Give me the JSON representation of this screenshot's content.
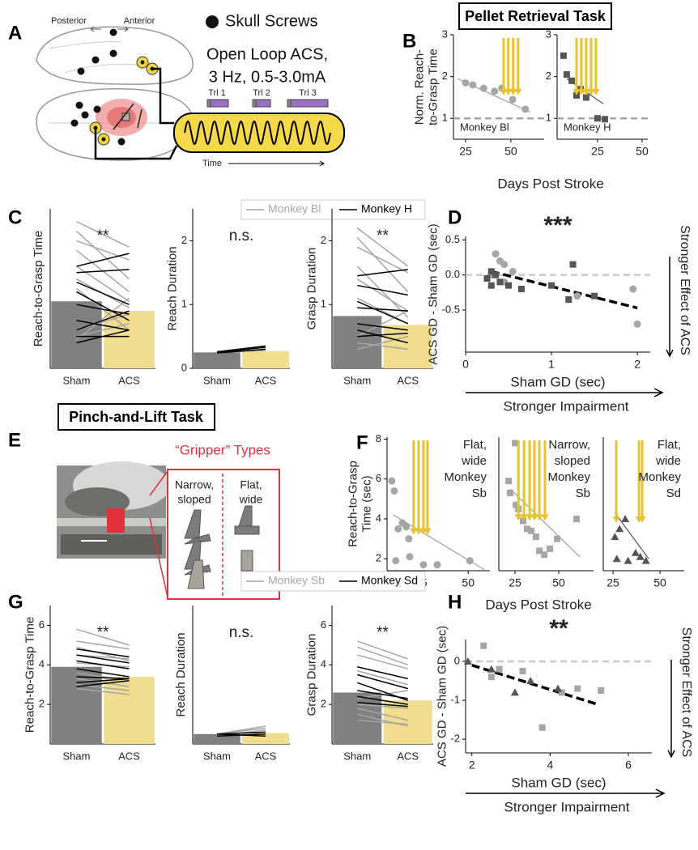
{
  "panel_labels": [
    "A",
    "B",
    "C",
    "D",
    "E",
    "F",
    "G",
    "H"
  ],
  "task_titles": [
    "Pellet Retrieval Task",
    "Pinch-and-Lift Task"
  ],
  "diagram": {
    "posterior": "Posterior",
    "anterior": "Anterior",
    "screws": "Skull Screws",
    "stim": [
      "Open Loop ACS,",
      "3 Hz, 0.5-3.0mA"
    ],
    "trials": [
      "Trl 1",
      "Trl 2",
      "Trl 3"
    ],
    "time": "Time",
    "gripper_title": "“Gripper” Types",
    "gripper_types": [
      [
        "Narrow,",
        "sloped"
      ],
      [
        "Flat,",
        "wide"
      ]
    ]
  },
  "chart_data": [
    {
      "type": "scatter",
      "xlim": [
        18.3,
        68.4
      ],
      "ylim": [
        0.5,
        3
      ],
      "xticks": [
        25,
        50
      ],
      "yticks": [
        1,
        2,
        3
      ],
      "ylabel": [
        "Norm. Reach-",
        "to-Grasp Time"
      ],
      "annotation": "Monkey Bl",
      "reference": 1,
      "reference_color": "#a6a6a6",
      "fit": {
        "x": [
          20.5,
          60.7
        ],
        "values": [
          1.95,
          1.15
        ]
      },
      "fit_color": "#a0a0a0",
      "arrows": [
        46,
        48.6,
        51.3,
        54
      ],
      "arrow_end": 1.55,
      "arrow_color": "#e6c234",
      "series": [
        {
          "marker": "circle",
          "color": "#a6a6a6",
          "x": [
            25,
            29,
            35,
            41,
            45,
            51,
            58
          ],
          "values": [
            1.85,
            1.8,
            1.72,
            1.65,
            1.72,
            1.45,
            1.22
          ]
        }
      ]
    },
    {
      "type": "scatter",
      "xlim": [
        2.3,
        53.2
      ],
      "ylim": [
        0.5,
        3
      ],
      "xticks": [
        25,
        50
      ],
      "yticks": [
        1,
        2,
        3
      ],
      "xlabel": "Days Post Stroke",
      "annotation": "Monkey H",
      "reference": 1,
      "reference_color": "#a6a6a6",
      "fit": {
        "x": [
          7.7,
          28.2
        ],
        "values": [
          1.95,
          1.35
        ]
      },
      "fit_color": "#555555",
      "arrows": [
        13.2,
        15.9,
        18.6,
        21.4,
        24.1
      ],
      "arrow_end": 1.55,
      "arrow_color": "#e6c234",
      "series": [
        {
          "marker": "square",
          "color": "#555555",
          "x": [
            5.9,
            7.7,
            10.5,
            13.2,
            15.5,
            18.6,
            25,
            29.1
          ],
          "values": [
            2.5,
            2.05,
            1.9,
            1.55,
            1.7,
            1.5,
            1.0,
            0.98
          ]
        }
      ]
    },
    {
      "type": "bar",
      "categories": [
        "Sham",
        "ACS"
      ],
      "values": [
        1.05,
        0.9
      ],
      "colors": [
        "#808080",
        "#f0dd8e"
      ],
      "ylim": [
        0,
        2.5
      ],
      "ylabel": "Reach-to-Grasp Time",
      "significance": "**",
      "legend": true,
      "series": [
        {
          "name": "Monkey Bl",
          "color": "#a6a6a6",
          "values": [
            [
              2.3,
              1.9
            ],
            [
              2.15,
              1.4
            ],
            [
              2.0,
              1.7
            ],
            [
              1.85,
              1.2
            ],
            [
              1.6,
              1.05
            ],
            [
              1.4,
              0.95
            ],
            [
              1.25,
              0.6
            ],
            [
              0.6,
              0.85
            ],
            [
              0.5,
              0.7
            ],
            [
              0.45,
              1.1
            ]
          ]
        },
        {
          "name": "Monkey H",
          "color": "#000000",
          "values": [
            [
              1.6,
              1.8
            ],
            [
              1.5,
              1.55
            ],
            [
              1.35,
              1.0
            ],
            [
              1.2,
              0.75
            ],
            [
              1.0,
              0.85
            ],
            [
              0.75,
              0.6
            ],
            [
              0.6,
              0.9
            ],
            [
              0.5,
              0.5
            ],
            [
              0.4,
              0.6
            ]
          ]
        }
      ]
    },
    {
      "type": "bar",
      "categories": [
        "Sham",
        "ACS"
      ],
      "values": [
        0.25,
        0.27
      ],
      "colors": [
        "#808080",
        "#f0dd8e"
      ],
      "ylim": [
        0,
        2.5
      ],
      "yticks": [
        0,
        1,
        2
      ],
      "ylabel": "Reach Duration",
      "significance": "n.s.",
      "series": [
        {
          "color": "#a6a6a6",
          "values": [
            [
              0.25,
              0.28
            ],
            [
              0.24,
              0.3
            ]
          ]
        },
        {
          "color": "#000000",
          "values": [
            [
              0.25,
              0.33
            ],
            [
              0.26,
              0.35
            ],
            [
              0.24,
              0.3
            ]
          ]
        }
      ]
    },
    {
      "type": "bar",
      "categories": [
        "Sham",
        "ACS"
      ],
      "values": [
        0.82,
        0.68
      ],
      "colors": [
        "#808080",
        "#f0dd8e"
      ],
      "ylim": [
        0,
        2.5
      ],
      "yticks": [
        1,
        2
      ],
      "ylabel": "Grasp Duration",
      "significance": "**",
      "series": [
        {
          "color": "#a6a6a6",
          "values": [
            [
              2.2,
              1.6
            ],
            [
              2.05,
              1.2
            ],
            [
              1.9,
              1.5
            ],
            [
              1.6,
              0.8
            ],
            [
              1.4,
              0.9
            ],
            [
              1.1,
              0.7
            ],
            [
              0.5,
              0.9
            ],
            [
              0.4,
              0.3
            ],
            [
              0.3,
              0.5
            ]
          ]
        },
        {
          "color": "#000000",
          "values": [
            [
              1.45,
              1.55
            ],
            [
              1.3,
              1.15
            ],
            [
              1.05,
              0.7
            ],
            [
              0.95,
              0.9
            ],
            [
              0.7,
              0.6
            ],
            [
              0.6,
              0.4
            ],
            [
              0.5,
              0.55
            ]
          ]
        }
      ]
    },
    {
      "type": "scatter",
      "xlim": [
        0,
        2.15
      ],
      "ylim": [
        -1.1,
        0.55
      ],
      "xticks": [
        0,
        1,
        2
      ],
      "yticks": [
        -0.5,
        {
          "value": 0,
          "label": "0.0"
        },
        0.5
      ],
      "xlabel": "Sham GD (sec)",
      "ylabel": "ACS GD - Sham GD (sec)",
      "significance": "***",
      "reference": 0,
      "reference_color": "#c8c8c8",
      "fit": {
        "x": [
          0.3,
          2.0
        ],
        "values": [
          0.05,
          -0.47
        ]
      },
      "fit_color": "#000000",
      "fit_dashed": true,
      "side_label": "Stronger Effect of ACS",
      "bottom_label": "Stronger Impairment",
      "series": [
        {
          "marker": "circle",
          "color": "#a6a6a6",
          "x": [
            0.35,
            0.4,
            0.45,
            0.55,
            1.3,
            1.95,
            2.0,
            0.3,
            0.45
          ],
          "values": [
            0.3,
            0.2,
            0.15,
            0.05,
            -0.3,
            -0.2,
            -0.7,
            0.0,
            -0.1
          ]
        },
        {
          "marker": "square",
          "color": "#555555",
          "x": [
            0.25,
            0.3,
            0.3,
            0.35,
            0.4,
            0.5,
            0.65,
            1.0,
            1.2,
            1.25,
            1.5
          ],
          "values": [
            -0.05,
            -0.15,
            0.05,
            0.0,
            -0.1,
            -0.15,
            -0.2,
            -0.15,
            -0.35,
            0.15,
            -0.3
          ]
        }
      ]
    },
    {
      "type": "scatter",
      "xlim": [
        7,
        61.5
      ],
      "ylim": [
        1.4,
        8.1
      ],
      "xticks": [
        25,
        50
      ],
      "yticks": [
        2,
        4,
        6,
        8
      ],
      "ylabel": [
        "Reach-to-Grasp",
        "Time (sec)"
      ],
      "annotation": [
        "Flat,",
        "wide",
        "Monkey",
        "Sb"
      ],
      "fit": {
        "x": [
          10.3,
          58.6
        ],
        "values": [
          4.2,
          1.45
        ]
      },
      "fit_color": "#a0a0a0",
      "arrows": [
        21.1,
        23.7,
        26.3,
        28.4
      ],
      "arrow_end": 3.2,
      "arrow_color": "#e6c234",
      "series": [
        {
          "marker": "circle",
          "color": "#a6a6a6",
          "x": [
            9.5,
            10.8,
            12.9,
            15.1,
            17.2,
            18.5,
            11.6,
            19,
            26.3,
            33.6,
            50.9
          ],
          "values": [
            5.9,
            5.4,
            3.5,
            3.8,
            3.6,
            3.0,
            1.9,
            2.1,
            1.7,
            1.7,
            1.9
          ]
        }
      ]
    },
    {
      "type": "scatter",
      "xlim": [
        15.7,
        69.9
      ],
      "ylim": [
        1.4,
        8.1
      ],
      "xticks": [
        25,
        50
      ],
      "xlabel": "Days Post Stroke",
      "annotation": [
        "Narrow,",
        "sloped",
        "Monkey",
        "Sb"
      ],
      "fit": {
        "x": [
          22.2,
          62
        ],
        "values": [
          5.5,
          2.1
        ]
      },
      "fit_color": "#a0a0a0",
      "arrows": [
        26.9,
        30.1,
        33.3,
        36.1,
        38.9,
        42.1
      ],
      "arrow_end": 3.9,
      "arrow_color": "#e6c234",
      "series": [
        {
          "marker": "square",
          "color": "#a6a6a6",
          "x": [
            25,
            21.3,
            22.2,
            25.5,
            26.9,
            29.6,
            31.9,
            34.3,
            37,
            38.9,
            41.7,
            44.9,
            49.1,
            60.2
          ],
          "values": [
            7.8,
            5.9,
            5.3,
            4.7,
            4.5,
            3.9,
            3.5,
            3.4,
            3.1,
            2.4,
            2.2,
            2.5,
            3.0,
            4.0
          ]
        }
      ]
    },
    {
      "type": "scatter",
      "xlim": [
        19.8,
        62.9
      ],
      "ylim": [
        1.4,
        8.1
      ],
      "xticks": [
        25,
        50
      ],
      "annotation": [
        "Flat,",
        "wide",
        "Monkey",
        "Sd"
      ],
      "fit": {
        "x": [
          26,
          44
        ],
        "values": [
          4.3,
          2.0
        ]
      },
      "fit_color": "#555555",
      "arrows": [
        26.7,
        38.8,
        40.5
      ],
      "arrow_end": 3.8,
      "arrow_color": "#e6c234",
      "series": [
        {
          "marker": "triangle",
          "color": "#555555",
          "x": [
            26,
            28.5,
            31.5,
            27,
            33,
            37,
            39.5,
            42.5
          ],
          "values": [
            3.1,
            3.5,
            4.0,
            2.0,
            1.9,
            2.3,
            2.1,
            1.9
          ]
        }
      ]
    },
    {
      "type": "bar",
      "categories": [
        "Sham",
        "ACS"
      ],
      "values": [
        3.9,
        3.4
      ],
      "colors": [
        "#808080",
        "#f0dd8e"
      ],
      "ylim": [
        0,
        7
      ],
      "yticks": [
        2,
        4,
        6
      ],
      "ylabel": "Reach-to-Grasp Time",
      "significance": "**",
      "legend": true,
      "series": [
        {
          "name": "Monkey Sb",
          "color": "#a6a6a6",
          "values": [
            [
              5.8,
              5.0
            ],
            [
              5.2,
              4.8
            ],
            [
              4.9,
              4.2
            ],
            [
              4.5,
              4.3
            ],
            [
              4.1,
              3.9
            ],
            [
              3.6,
              3.2
            ],
            [
              3.3,
              2.9
            ],
            [
              3.0,
              2.7
            ],
            [
              2.8,
              2.5
            ]
          ]
        },
        {
          "name": "Monkey Sd",
          "color": "#000000",
          "values": [
            [
              4.8,
              4.4
            ],
            [
              4.5,
              4.1
            ],
            [
              4.2,
              3.8
            ],
            [
              3.8,
              3.4
            ],
            [
              3.4,
              3.3
            ],
            [
              3.1,
              3.3
            ],
            [
              2.9,
              3.2
            ]
          ]
        }
      ]
    },
    {
      "type": "bar",
      "categories": [
        "Sham",
        "ACS"
      ],
      "values": [
        0.5,
        0.55
      ],
      "colors": [
        "#808080",
        "#f0dd8e"
      ],
      "ylim": [
        0,
        7
      ],
      "ylabel": "Reach Duration",
      "significance": "n.s.",
      "series": [
        {
          "color": "#a6a6a6",
          "values": [
            [
              0.5,
              0.9
            ],
            [
              0.5,
              0.8
            ],
            [
              0.4,
              0.7
            ]
          ]
        },
        {
          "color": "#000000",
          "values": [
            [
              0.5,
              0.6
            ],
            [
              0.4,
              0.5
            ],
            [
              0.5,
              0.4
            ]
          ]
        }
      ]
    },
    {
      "type": "bar",
      "categories": [
        "Sham",
        "ACS"
      ],
      "values": [
        2.6,
        2.2
      ],
      "colors": [
        "#808080",
        "#f0dd8e"
      ],
      "ylim": [
        0,
        7
      ],
      "yticks": [
        2,
        4,
        6
      ],
      "ylabel": "Grasp Duration",
      "significance": "**",
      "series": [
        {
          "color": "#a6a6a6",
          "values": [
            [
              5.2,
              4.3
            ],
            [
              4.9,
              4.0
            ],
            [
              4.5,
              3.8
            ],
            [
              3.7,
              3.0
            ],
            [
              2.3,
              2.7
            ],
            [
              2.0,
              1.8
            ],
            [
              1.8,
              1.2
            ],
            [
              1.5,
              0.9
            ],
            [
              1.2,
              1.0
            ]
          ]
        },
        {
          "color": "#000000",
          "values": [
            [
              3.9,
              3.3
            ],
            [
              3.5,
              2.8
            ],
            [
              3.1,
              2.2
            ],
            [
              2.7,
              2.3
            ],
            [
              2.4,
              2.0
            ],
            [
              2.1,
              1.9
            ]
          ]
        }
      ]
    },
    {
      "type": "scatter",
      "xlim": [
        1.84,
        6.6
      ],
      "ylim": [
        -2.35,
        0.56
      ],
      "xticks": [
        2,
        4,
        6
      ],
      "yticks": [
        -2,
        -1,
        0
      ],
      "xlabel": "Sham GD (sec)",
      "ylabel": "ACS GD - Sham GD (sec)",
      "significance": "**",
      "reference": 0,
      "reference_color": "#c8c8c8",
      "fit": {
        "x": [
          2.0,
          5.2
        ],
        "values": [
          -0.1,
          -1.1
        ]
      },
      "fit_color": "#000000",
      "fit_dashed": true,
      "side_label": "Stronger Effect of ACS",
      "bottom_label": "Stronger Impairment",
      "series": [
        {
          "marker": "square",
          "color": "#a6a6a6",
          "x": [
            2.3,
            2.5,
            2.7,
            3.3,
            3.8,
            4.3,
            4.7,
            5.3
          ],
          "values": [
            0.4,
            -0.4,
            -0.2,
            -0.25,
            -1.7,
            -0.8,
            -0.7,
            -0.75
          ]
        },
        {
          "marker": "triangle",
          "color": "#555555",
          "x": [
            1.9,
            2.5,
            3.1,
            3.5,
            4.2
          ],
          "values": [
            0.0,
            -0.2,
            -0.8,
            -0.5,
            -0.7
          ]
        }
      ]
    }
  ]
}
